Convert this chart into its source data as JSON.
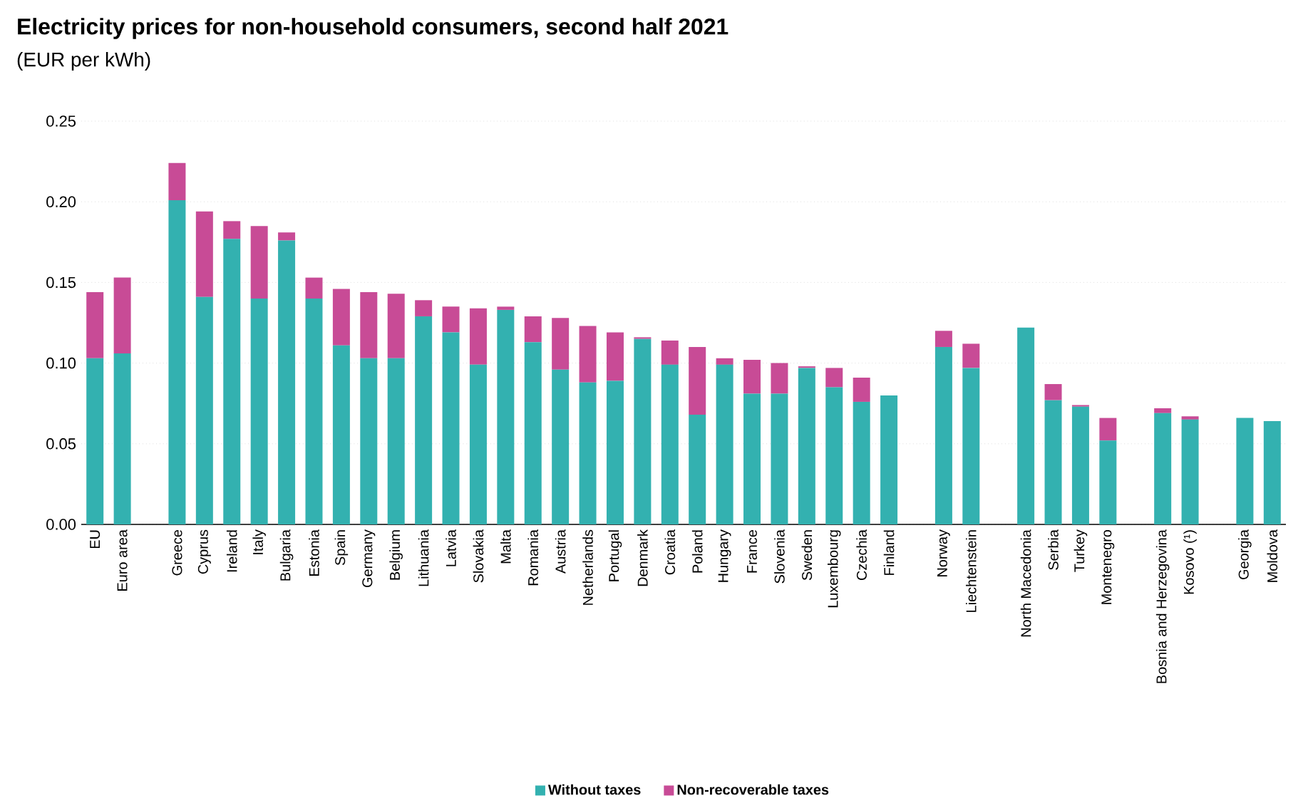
{
  "chart_data": {
    "type": "bar",
    "stacked": true,
    "title": "Electricity prices for non-household consumers, second half 2021",
    "subtitle": "(EUR per kWh)",
    "categories": [
      "EU",
      "Euro area",
      null,
      "Greece",
      "Cyprus",
      "Ireland",
      "Italy",
      "Bulgaria",
      "Estonia",
      "Spain",
      "Germany",
      "Belgium",
      "Lithuania",
      "Latvia",
      "Slovakia",
      "Malta",
      "Romania",
      "Austria",
      "Netherlands",
      "Portugal",
      "Denmark",
      "Croatia",
      "Poland",
      "Hungary",
      "France",
      "Slovenia",
      "Sweden",
      "Luxembourg",
      "Czechia",
      "Finland",
      null,
      "Norway",
      "Liechtenstein",
      null,
      "North Macedonia",
      "Serbia",
      "Turkey",
      "Montenegro",
      null,
      "Bosnia and Herzegovina",
      "Kosovo (¹)",
      null,
      "Georgia",
      "Moldova"
    ],
    "series": [
      {
        "name": "Without taxes",
        "color": "#33b1b0",
        "values": [
          0.103,
          0.106,
          null,
          0.201,
          0.141,
          0.177,
          0.14,
          0.176,
          0.14,
          0.111,
          0.103,
          0.103,
          0.129,
          0.119,
          0.099,
          0.133,
          0.113,
          0.096,
          0.088,
          0.089,
          0.115,
          0.099,
          0.068,
          0.099,
          0.081,
          0.081,
          0.097,
          0.085,
          0.076,
          0.08,
          null,
          0.11,
          0.097,
          null,
          0.122,
          0.077,
          0.073,
          0.052,
          null,
          0.069,
          0.065,
          null,
          0.066,
          0.064
        ]
      },
      {
        "name": "Non-recoverable taxes",
        "color": "#c84b96",
        "values": [
          0.041,
          0.047,
          null,
          0.023,
          0.053,
          0.011,
          0.045,
          0.005,
          0.013,
          0.035,
          0.041,
          0.04,
          0.01,
          0.016,
          0.035,
          0.002,
          0.016,
          0.032,
          0.035,
          0.03,
          0.001,
          0.015,
          0.042,
          0.004,
          0.021,
          0.019,
          0.001,
          0.012,
          0.015,
          0,
          null,
          0.01,
          0.015,
          null,
          0,
          0.01,
          0.001,
          0.014,
          null,
          0.003,
          0.002,
          null,
          0,
          0
        ]
      }
    ],
    "ylim": [
      0,
      0.25
    ],
    "yticks": [
      {
        "value": 0,
        "label": "0.00"
      },
      0.05,
      {
        "value": 0.1,
        "label": "0.10"
      },
      0.15,
      {
        "value": 0.2,
        "label": "0.20"
      },
      0.25
    ],
    "grid": "y",
    "legend": "bottom"
  }
}
